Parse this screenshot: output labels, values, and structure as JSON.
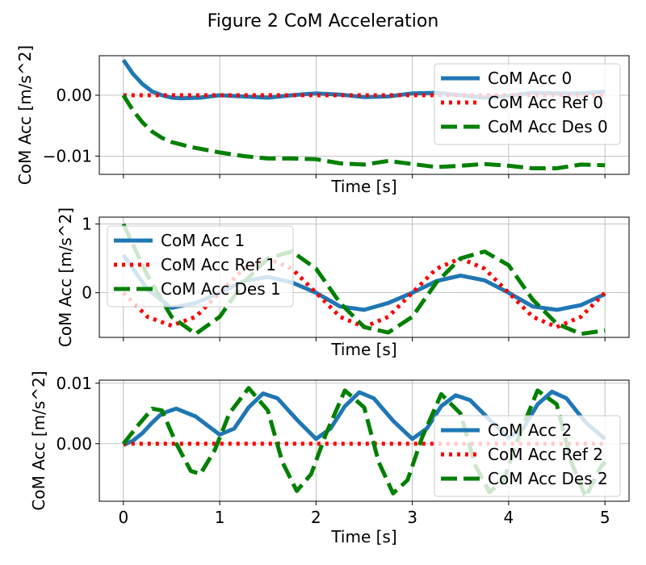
{
  "figure_title": "Figure 2 CoM Acceleration",
  "chart_data": [
    {
      "type": "line",
      "xlabel": "Time [s]",
      "ylabel": "CoM Acc [m/s^2]",
      "xlim": [
        -0.25,
        5.25
      ],
      "ylim": [
        -0.013,
        0.0065
      ],
      "xticks": [
        0,
        1,
        2,
        3,
        4,
        5
      ],
      "yticks": [
        -0.01,
        0.0
      ],
      "ytick_labels": [
        "−0.01",
        "0.00"
      ],
      "show_xtick_labels": false,
      "grid": true,
      "legend_position": "top-right",
      "series": [
        {
          "name": "CoM Acc 0",
          "color": "#1f77b4",
          "dash": "solid",
          "x": [
            0,
            0.1,
            0.2,
            0.3,
            0.4,
            0.5,
            0.6,
            0.8,
            1.0,
            1.25,
            1.5,
            1.75,
            2.0,
            2.25,
            2.5,
            2.75,
            3.0,
            3.25,
            3.5,
            3.75,
            4.0,
            4.25,
            4.5,
            4.75,
            5.0
          ],
          "y": [
            0.0058,
            0.0035,
            0.0018,
            0.0006,
            0.0,
            -0.0004,
            -0.0005,
            -0.0004,
            0.0,
            -0.0002,
            -0.0004,
            0.0,
            0.0003,
            0.0001,
            -0.0003,
            -0.0002,
            0.0003,
            0.0004,
            0.0,
            -0.0004,
            -0.0001,
            0.0004,
            0.0003,
            0.0003,
            0.0006
          ]
        },
        {
          "name": "CoM Acc Ref 0",
          "color": "#ff0000",
          "dash": "dotted",
          "x": [
            0,
            5.0
          ],
          "y": [
            0.0,
            0.0
          ]
        },
        {
          "name": "CoM Acc Des 0",
          "color": "#008000",
          "dash": "dashed",
          "x": [
            0,
            0.1,
            0.2,
            0.3,
            0.4,
            0.5,
            0.7,
            1.0,
            1.25,
            1.5,
            1.75,
            2.0,
            2.25,
            2.5,
            2.75,
            3.0,
            3.25,
            3.5,
            3.75,
            4.0,
            4.25,
            4.5,
            4.75,
            5.0
          ],
          "y": [
            0.0,
            -0.0025,
            -0.0045,
            -0.006,
            -0.007,
            -0.0077,
            -0.0085,
            -0.0094,
            -0.01,
            -0.0104,
            -0.0104,
            -0.0105,
            -0.0112,
            -0.0114,
            -0.0108,
            -0.0113,
            -0.0118,
            -0.0116,
            -0.0113,
            -0.0116,
            -0.012,
            -0.012,
            -0.0114,
            -0.0115
          ]
        }
      ]
    },
    {
      "type": "line",
      "xlabel": "Time [s]",
      "ylabel": "CoM Acc [m/s^2]",
      "xlim": [
        -0.25,
        5.25
      ],
      "ylim": [
        -0.65,
        1.1
      ],
      "xticks": [
        0,
        1,
        2,
        3,
        4,
        5
      ],
      "yticks": [
        0,
        1
      ],
      "ytick_labels": [
        "0",
        "1"
      ],
      "show_xtick_labels": false,
      "grid": true,
      "legend_position": "top-left",
      "series": [
        {
          "name": "CoM Acc 1",
          "color": "#1f77b4",
          "dash": "solid",
          "x": [
            0,
            0.25,
            0.5,
            0.75,
            1.0,
            1.25,
            1.5,
            1.75,
            2.0,
            2.25,
            2.5,
            2.75,
            3.0,
            3.25,
            3.5,
            3.75,
            4.0,
            4.25,
            4.5,
            4.75,
            5.0
          ],
          "y": [
            0.55,
            0.05,
            -0.22,
            -0.15,
            0.0,
            0.17,
            0.23,
            0.15,
            0.0,
            -0.2,
            -0.25,
            -0.15,
            0.0,
            0.17,
            0.25,
            0.18,
            0.0,
            -0.2,
            -0.25,
            -0.18,
            -0.02
          ]
        },
        {
          "name": "CoM Acc Ref 1",
          "color": "#ff0000",
          "dash": "dotted",
          "x": [
            0,
            0.25,
            0.5,
            0.75,
            1.0,
            1.25,
            1.5,
            1.75,
            2.0,
            2.25,
            2.5,
            2.75,
            3.0,
            3.25,
            3.5,
            3.75,
            4.0,
            4.25,
            4.5,
            4.75,
            5.0
          ],
          "y": [
            0.0,
            -0.35,
            -0.48,
            -0.35,
            0.0,
            0.35,
            0.5,
            0.35,
            0.0,
            -0.35,
            -0.5,
            -0.35,
            0.0,
            0.35,
            0.5,
            0.35,
            0.0,
            -0.35,
            -0.5,
            -0.35,
            0.0
          ]
        },
        {
          "name": "CoM Acc Des 1",
          "color": "#008000",
          "dash": "dashed",
          "x": [
            0,
            0.25,
            0.5,
            0.75,
            1.0,
            1.25,
            1.5,
            1.75,
            2.0,
            2.25,
            2.5,
            2.75,
            3.0,
            3.25,
            3.5,
            3.75,
            4.0,
            4.25,
            4.5,
            4.75,
            5.0
          ],
          "y": [
            1.0,
            0.25,
            -0.35,
            -0.6,
            -0.35,
            0.15,
            0.5,
            0.6,
            0.35,
            -0.15,
            -0.5,
            -0.58,
            -0.35,
            0.15,
            0.5,
            0.6,
            0.4,
            -0.1,
            -0.45,
            -0.6,
            -0.55
          ]
        }
      ]
    },
    {
      "type": "line",
      "xlabel": "Time [s]",
      "ylabel": "CoM Acc [m/s^2]",
      "xlim": [
        -0.25,
        5.25
      ],
      "ylim": [
        -0.0095,
        0.0105
      ],
      "xticks": [
        0,
        1,
        2,
        3,
        4,
        5
      ],
      "xtick_labels": [
        "0",
        "1",
        "2",
        "3",
        "4",
        "5"
      ],
      "yticks": [
        0.0,
        0.01
      ],
      "ytick_labels": [
        "0.00",
        "0.01"
      ],
      "show_xtick_labels": true,
      "grid": true,
      "legend_position": "lower-right",
      "series": [
        {
          "name": "CoM Acc 2",
          "color": "#1f77b4",
          "dash": "solid",
          "x": [
            0,
            0.1,
            0.2,
            0.3,
            0.4,
            0.55,
            0.75,
            1.0,
            1.15,
            1.3,
            1.45,
            1.6,
            1.8,
            2.0,
            2.15,
            2.3,
            2.45,
            2.6,
            2.8,
            3.0,
            3.15,
            3.3,
            3.45,
            3.6,
            3.8,
            4.0,
            4.15,
            4.3,
            4.45,
            4.6,
            4.8,
            5.0
          ],
          "y": [
            -0.0002,
            0.0005,
            0.0018,
            0.0035,
            0.005,
            0.0058,
            0.0045,
            0.0015,
            0.0025,
            0.006,
            0.0083,
            0.0075,
            0.004,
            0.0008,
            0.0025,
            0.0062,
            0.0085,
            0.0075,
            0.0038,
            0.0008,
            0.0025,
            0.0062,
            0.008,
            0.0072,
            0.004,
            0.001,
            0.0025,
            0.0065,
            0.0086,
            0.0075,
            0.0035,
            0.0008
          ]
        },
        {
          "name": "CoM Acc Ref 2",
          "color": "#ff0000",
          "dash": "dotted",
          "x": [
            0,
            5.0
          ],
          "y": [
            0.0,
            0.0
          ]
        },
        {
          "name": "CoM Acc Des 2",
          "color": "#008000",
          "dash": "dashed",
          "x": [
            0,
            0.15,
            0.3,
            0.4,
            0.55,
            0.7,
            0.8,
            0.95,
            1.1,
            1.3,
            1.5,
            1.65,
            1.8,
            1.95,
            2.1,
            2.3,
            2.5,
            2.65,
            2.8,
            2.95,
            3.1,
            3.3,
            3.5,
            3.65,
            3.8,
            3.95,
            4.1,
            4.3,
            4.5,
            4.65,
            4.8,
            4.95,
            5.0
          ],
          "y": [
            0.0,
            0.003,
            0.0058,
            0.0055,
            0.0,
            -0.0045,
            -0.005,
            -0.001,
            0.005,
            0.0092,
            0.0055,
            -0.003,
            -0.0078,
            -0.005,
            0.0015,
            0.0088,
            0.006,
            -0.003,
            -0.0082,
            -0.006,
            0.001,
            0.0082,
            0.005,
            -0.0035,
            -0.008,
            -0.006,
            0.001,
            0.0088,
            0.0065,
            -0.003,
            -0.0088,
            -0.004,
            -0.003
          ]
        }
      ]
    }
  ]
}
